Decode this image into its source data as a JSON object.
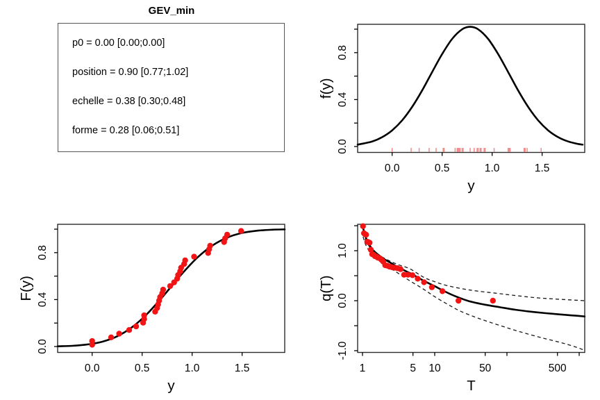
{
  "title_panel": {
    "title": "GEV_min",
    "params": [
      "p0 = 0.00 [0.00;0.00]",
      "position = 0.90 [0.77;1.02]",
      "echelle = 0.38 [0.30;0.48]",
      "forme = 0.28 [0.06;0.51]"
    ]
  },
  "colors": {
    "point": "#f21414",
    "rug": "#f28b8b",
    "curve": "#000000",
    "box": "#2b2b2b",
    "band": "#1a1a1a"
  },
  "dataset": {
    "sorted_values": [
      0.0,
      0.0,
      0.19,
      0.27,
      0.37,
      0.44,
      0.51,
      0.52,
      0.52,
      0.63,
      0.65,
      0.66,
      0.67,
      0.68,
      0.7,
      0.71,
      0.78,
      0.82,
      0.85,
      0.86,
      0.88,
      0.89,
      0.92,
      0.93,
      1.02,
      1.16,
      1.17,
      1.18,
      1.32,
      1.33,
      1.35,
      1.49
    ]
  },
  "chart_data": [
    {
      "type": "line",
      "name": "density",
      "xlabel": "y",
      "ylabel": "f(y)",
      "xlog": false,
      "xlim": [
        -0.345,
        1.926
      ],
      "ylim": [
        -0.0503,
        1.0414
      ],
      "xticks": {
        "values": [
          0,
          0.5,
          1,
          1.5
        ],
        "labels": [
          "0.0",
          "0.5",
          "1.0",
          "1.5"
        ]
      },
      "yticks": {
        "values": [
          0,
          0.2,
          0.4,
          0.6,
          0.8,
          1.0
        ],
        "labels": [
          "0.0",
          "",
          "0.4",
          "",
          "0.8",
          ""
        ]
      },
      "rug_from_dataset": true,
      "curve": [
        [
          -0.345,
          0.016
        ],
        [
          -0.2,
          0.043
        ],
        [
          -0.1,
          0.08
        ],
        [
          0.0,
          0.138
        ],
        [
          0.1,
          0.223
        ],
        [
          0.2,
          0.338
        ],
        [
          0.3,
          0.478
        ],
        [
          0.4,
          0.635
        ],
        [
          0.5,
          0.788
        ],
        [
          0.6,
          0.917
        ],
        [
          0.7,
          0.999
        ],
        [
          0.78,
          1.02
        ],
        [
          0.86,
          0.999
        ],
        [
          0.96,
          0.917
        ],
        [
          1.06,
          0.788
        ],
        [
          1.16,
          0.635
        ],
        [
          1.26,
          0.478
        ],
        [
          1.36,
          0.338
        ],
        [
          1.46,
          0.223
        ],
        [
          1.56,
          0.138
        ],
        [
          1.66,
          0.08
        ],
        [
          1.76,
          0.043
        ],
        [
          1.86,
          0.022
        ],
        [
          1.905,
          0.016
        ]
      ]
    },
    {
      "type": "scatter+line",
      "name": "cdf",
      "xlabel": "y",
      "ylabel": "F(y)",
      "xlog": false,
      "xlim": [
        -0.345,
        1.926
      ],
      "ylim": [
        -0.0503,
        1.0414
      ],
      "xticks": {
        "values": [
          0,
          0.5,
          1,
          1.5
        ],
        "labels": [
          "0.0",
          "0.5",
          "1.0",
          "1.5"
        ]
      },
      "yticks": {
        "values": [
          0,
          0.2,
          0.4,
          0.6,
          0.8,
          1.0
        ],
        "labels": [
          "0.0",
          "",
          "0.4",
          "",
          "0.8",
          ""
        ]
      },
      "points_from_dataset": "cdf",
      "curve": [
        [
          -0.345,
          0.002
        ],
        [
          -0.2,
          0.006
        ],
        [
          -0.05,
          0.017
        ],
        [
          0.1,
          0.041
        ],
        [
          0.25,
          0.087
        ],
        [
          0.4,
          0.165
        ],
        [
          0.55,
          0.278
        ],
        [
          0.7,
          0.419
        ],
        [
          0.78,
          0.5
        ],
        [
          0.9,
          0.621
        ],
        [
          1.05,
          0.756
        ],
        [
          1.2,
          0.859
        ],
        [
          1.35,
          0.928
        ],
        [
          1.5,
          0.968
        ],
        [
          1.65,
          0.987
        ],
        [
          1.8,
          0.9955
        ],
        [
          1.926,
          0.998
        ]
      ]
    },
    {
      "type": "scatter+line",
      "name": "return-level",
      "xlabel": "T",
      "ylabel": "q(T)",
      "xlog": true,
      "xlim": [
        0.857,
        1193
      ],
      "ylim": [
        -1.035,
        1.528
      ],
      "xticks": {
        "values": [
          1,
          5,
          10,
          50,
          100,
          500,
          1000
        ],
        "labels": [
          "1",
          "5",
          "10",
          "50",
          "",
          "500",
          ""
        ]
      },
      "yticks": {
        "values": [
          -1,
          -0.5,
          0,
          0.5,
          1,
          1.5
        ],
        "labels": [
          "-1.0",
          "",
          "0.0",
          "",
          "1.0",
          ""
        ]
      },
      "points_from_dataset": "return",
      "curve": [
        [
          1.005,
          1.5
        ],
        [
          1.05,
          1.38
        ],
        [
          1.1,
          1.28
        ],
        [
          1.2,
          1.16
        ],
        [
          1.35,
          1.04
        ],
        [
          1.5,
          0.97
        ],
        [
          1.75,
          0.89
        ],
        [
          2,
          0.83
        ],
        [
          2.5,
          0.75
        ],
        [
          3,
          0.68
        ],
        [
          4,
          0.59
        ],
        [
          5,
          0.52
        ],
        [
          7,
          0.4
        ],
        [
          10,
          0.29
        ],
        [
          14,
          0.18
        ],
        [
          20,
          0.08
        ],
        [
          30,
          -0.01
        ],
        [
          50,
          -0.08
        ],
        [
          80,
          -0.13
        ],
        [
          130,
          -0.18
        ],
        [
          250,
          -0.23
        ],
        [
          500,
          -0.27
        ],
        [
          900,
          -0.3
        ],
        [
          1190,
          -0.315
        ]
      ],
      "upper_band": [
        [
          1.02,
          1.36
        ],
        [
          1.1,
          1.22
        ],
        [
          1.25,
          1.08
        ],
        [
          1.5,
          0.97
        ],
        [
          2,
          0.85
        ],
        [
          3,
          0.73
        ],
        [
          4.5,
          0.64
        ],
        [
          7,
          0.47
        ],
        [
          10,
          0.38
        ],
        [
          15,
          0.3
        ],
        [
          25,
          0.235
        ],
        [
          40,
          0.19
        ],
        [
          70,
          0.15
        ],
        [
          120,
          0.11
        ],
        [
          250,
          0.06
        ],
        [
          500,
          0.03
        ],
        [
          900,
          0.01
        ],
        [
          1190,
          0.0
        ]
      ],
      "lower_band": [
        [
          1.02,
          1.28
        ],
        [
          1.1,
          1.13
        ],
        [
          1.25,
          0.99
        ],
        [
          1.5,
          0.87
        ],
        [
          2,
          0.73
        ],
        [
          3,
          0.565
        ],
        [
          4.5,
          0.4
        ],
        [
          7,
          0.23
        ],
        [
          10,
          0.08
        ],
        [
          15,
          -0.07
        ],
        [
          22,
          -0.2
        ],
        [
          35,
          -0.32
        ],
        [
          55,
          -0.42
        ],
        [
          90,
          -0.52
        ],
        [
          150,
          -0.62
        ],
        [
          300,
          -0.74
        ],
        [
          600,
          -0.85
        ],
        [
          1000,
          -0.95
        ],
        [
          1190,
          -1.0
        ]
      ]
    }
  ]
}
